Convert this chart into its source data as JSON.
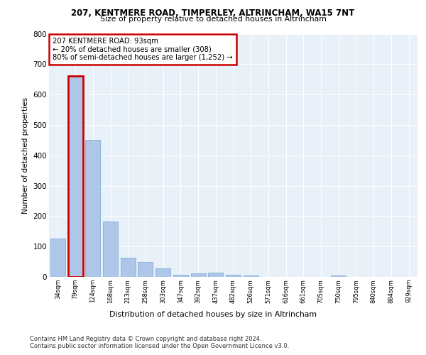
{
  "title1": "207, KENTMERE ROAD, TIMPERLEY, ALTRINCHAM, WA15 7NT",
  "title2": "Size of property relative to detached houses in Altrincham",
  "xlabel": "Distribution of detached houses by size in Altrincham",
  "ylabel": "Number of detached properties",
  "categories": [
    "34sqm",
    "79sqm",
    "124sqm",
    "168sqm",
    "213sqm",
    "258sqm",
    "303sqm",
    "347sqm",
    "392sqm",
    "437sqm",
    "482sqm",
    "526sqm",
    "571sqm",
    "616sqm",
    "661sqm",
    "705sqm",
    "750sqm",
    "795sqm",
    "840sqm",
    "884sqm",
    "929sqm"
  ],
  "values": [
    125,
    660,
    450,
    183,
    62,
    50,
    27,
    7,
    12,
    14,
    6,
    5,
    0,
    0,
    0,
    0,
    5,
    0,
    0,
    0,
    0
  ],
  "highlight_index": 1,
  "bar_color": "#aec6e8",
  "bar_edge_color": "#8ab4d8",
  "highlight_bar_edge_color": "#cc0000",
  "annotation_text": "207 KENTMERE ROAD: 93sqm\n← 20% of detached houses are smaller (308)\n80% of semi-detached houses are larger (1,252) →",
  "annotation_box_color": "#ffffff",
  "annotation_box_edge_color": "#cc0000",
  "ylim": [
    0,
    800
  ],
  "yticks": [
    0,
    100,
    200,
    300,
    400,
    500,
    600,
    700,
    800
  ],
  "bg_color": "#e8f0f8",
  "fig_bg_color": "#ffffff",
  "footer1": "Contains HM Land Registry data © Crown copyright and database right 2024.",
  "footer2": "Contains public sector information licensed under the Open Government Licence v3.0."
}
